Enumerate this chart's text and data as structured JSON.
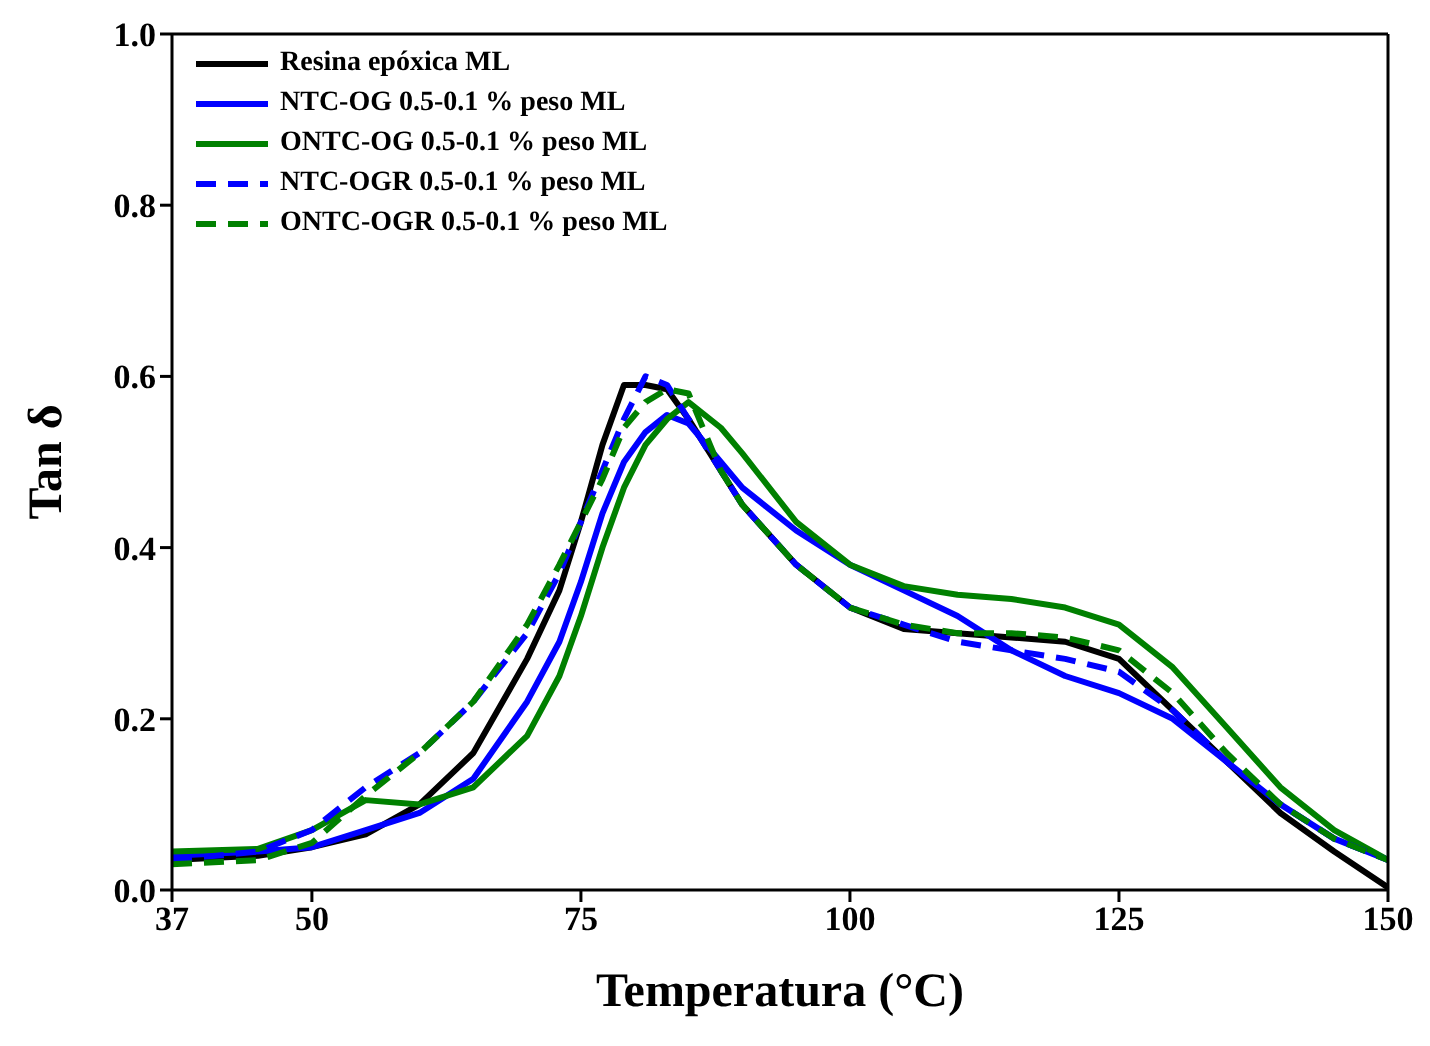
{
  "chart_data": {
    "type": "line",
    "xlabel": "Temperatura (°C)",
    "ylabel": "Tan δ",
    "x": [
      37,
      45,
      50,
      55,
      60,
      65,
      70,
      73,
      75,
      77,
      79,
      81,
      83,
      85,
      88,
      90,
      95,
      100,
      105,
      110,
      115,
      120,
      125,
      130,
      135,
      140,
      145,
      150
    ],
    "series": [
      {
        "name": "Resina epóxica ML",
        "color": "#000000",
        "line_style": "solid",
        "values": [
          0.035,
          0.04,
          0.05,
          0.065,
          0.1,
          0.16,
          0.27,
          0.35,
          0.43,
          0.52,
          0.59,
          0.59,
          0.585,
          0.55,
          0.49,
          0.45,
          0.38,
          0.33,
          0.305,
          0.3,
          0.295,
          0.29,
          0.27,
          0.21,
          0.15,
          0.09,
          0.045,
          0.003
        ]
      },
      {
        "name": "NTC-OG 0.5-0.1 % peso ML",
        "color": "#0000ff",
        "line_style": "solid",
        "values": [
          0.04,
          0.045,
          0.05,
          0.07,
          0.09,
          0.13,
          0.22,
          0.29,
          0.36,
          0.44,
          0.5,
          0.535,
          0.555,
          0.545,
          0.5,
          0.47,
          0.42,
          0.38,
          0.35,
          0.32,
          0.28,
          0.25,
          0.23,
          0.2,
          0.15,
          0.1,
          0.06,
          0.035
        ]
      },
      {
        "name": "ONTC-OG 0.5-0.1 % peso ML",
        "color": "#008000",
        "line_style": "solid",
        "values": [
          0.045,
          0.048,
          0.07,
          0.105,
          0.1,
          0.12,
          0.18,
          0.25,
          0.32,
          0.4,
          0.47,
          0.52,
          0.55,
          0.57,
          0.54,
          0.51,
          0.43,
          0.38,
          0.355,
          0.345,
          0.34,
          0.33,
          0.31,
          0.26,
          0.19,
          0.12,
          0.07,
          0.035
        ]
      },
      {
        "name": "NTC-OGR 0.5-0.1 % peso ML",
        "color": "#0000ff",
        "line_style": "dashed",
        "values": [
          0.035,
          0.045,
          0.07,
          0.12,
          0.16,
          0.22,
          0.3,
          0.37,
          0.43,
          0.49,
          0.55,
          0.6,
          0.59,
          0.55,
          0.49,
          0.45,
          0.38,
          0.33,
          0.31,
          0.29,
          0.28,
          0.27,
          0.255,
          0.21,
          0.15,
          0.1,
          0.06,
          0.035
        ]
      },
      {
        "name": "ONTC-OGR 0.5-0.1 % peso ML",
        "color": "#008000",
        "line_style": "dashed",
        "values": [
          0.03,
          0.035,
          0.055,
          0.11,
          0.16,
          0.22,
          0.31,
          0.38,
          0.43,
          0.48,
          0.54,
          0.57,
          0.585,
          0.58,
          0.49,
          0.45,
          0.38,
          0.33,
          0.31,
          0.3,
          0.3,
          0.295,
          0.28,
          0.23,
          0.16,
          0.1,
          0.06,
          0.035
        ]
      }
    ],
    "xlim": [
      37,
      150
    ],
    "xticks": [
      37,
      50,
      75,
      100,
      125,
      150
    ],
    "ylim": [
      0,
      1.0
    ],
    "yticks": [
      {
        "value": 0,
        "label": "0.0"
      },
      {
        "value": 0.2,
        "label": "0.2"
      },
      {
        "value": 0.4,
        "label": "0.4"
      },
      {
        "value": 0.6,
        "label": "0.6"
      },
      {
        "value": 0.8,
        "label": "0.8"
      },
      {
        "value": 1.0,
        "label": "1.0"
      }
    ],
    "legend": "top left",
    "grid": false,
    "marker": "none"
  }
}
